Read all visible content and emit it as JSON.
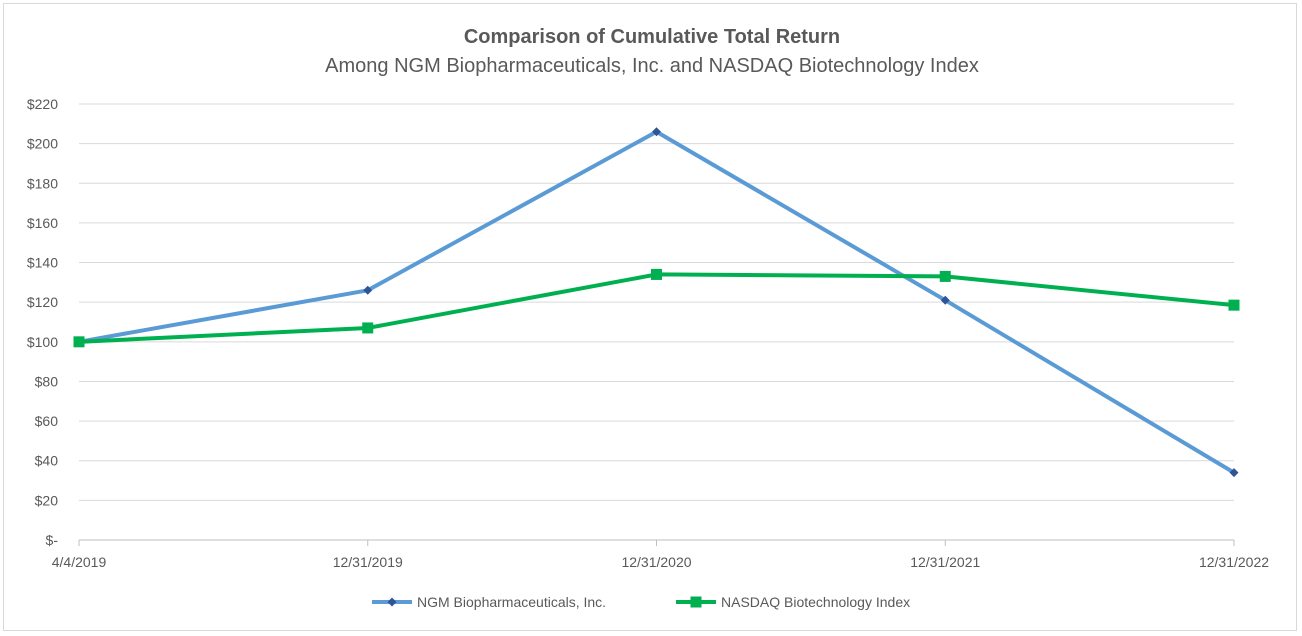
{
  "chart_data": {
    "type": "line",
    "title": "Comparison of Cumulative Total Return",
    "subtitle": "Among NGM Biopharmaceuticals, Inc. and NASDAQ Biotechnology Index",
    "categories": [
      "4/4/2019",
      "12/31/2019",
      "12/31/2020",
      "12/31/2021",
      "12/31/2022"
    ],
    "ylim": [
      0,
      220
    ],
    "yticks": [
      0,
      20,
      40,
      60,
      80,
      100,
      120,
      140,
      160,
      180,
      200,
      220
    ],
    "ytick_labels": [
      "$-",
      "$20",
      "$40",
      "$60",
      "$80",
      "$100",
      "$120",
      "$140",
      "$160",
      "$180",
      "$200",
      "$220"
    ],
    "grid": true,
    "legend_position": "bottom",
    "series": [
      {
        "name": "NGM Biopharmaceuticals, Inc.",
        "values": [
          100,
          126,
          206,
          121,
          34
        ],
        "color": "#5b9bd5",
        "marker": "diamond",
        "marker_color": "#2f5597"
      },
      {
        "name": "NASDAQ Biotechnology Index",
        "values": [
          100,
          107,
          134,
          133,
          118.5
        ],
        "color": "#00b050",
        "marker": "square",
        "marker_color": "#00b050"
      }
    ]
  }
}
